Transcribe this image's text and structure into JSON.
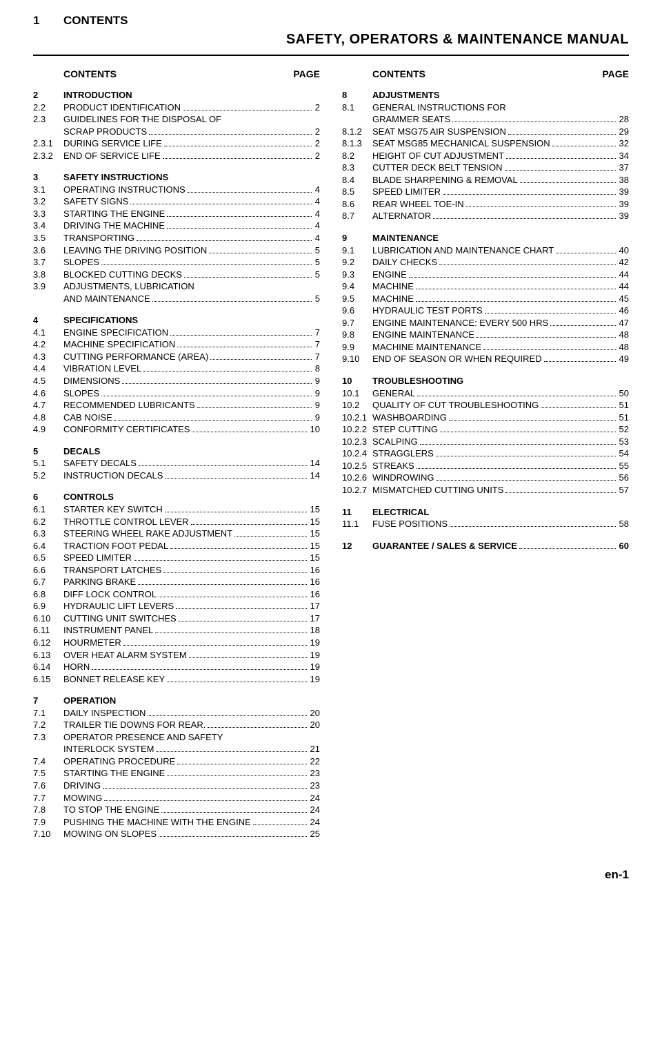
{
  "header": {
    "num": "1",
    "title": "CONTENTS"
  },
  "subtitle": "SAFETY, OPERATORS & MAINTENANCE  MANUAL",
  "colHeader": {
    "contents": "CONTENTS",
    "page": "PAGE"
  },
  "footer": "en-1",
  "left": [
    {
      "num": "2",
      "title": "INTRODUCTION",
      "entries": [
        {
          "num": "2.2",
          "title": "PRODUCT IDENTIFICATION",
          "page": "2"
        },
        {
          "num": "2.3",
          "title": "GUIDELINES FOR THE DISPOSAL OF",
          "cont": "SCRAP PRODUCTS",
          "page": "2"
        },
        {
          "num": "2.3.1",
          "title": "DURING SERVICE LIFE",
          "page": "2"
        },
        {
          "num": "2.3.2",
          "title": "END OF SERVICE LIFE",
          "page": "2"
        }
      ]
    },
    {
      "num": "3",
      "title": "SAFETY INSTRUCTIONS",
      "entries": [
        {
          "num": "3.1",
          "title": "OPERATING INSTRUCTIONS",
          "page": "4"
        },
        {
          "num": "3.2",
          "title": "SAFETY SIGNS",
          "page": "4"
        },
        {
          "num": "3.3",
          "title": "STARTING THE ENGINE",
          "page": "4"
        },
        {
          "num": "3.4",
          "title": "DRIVING THE MACHINE",
          "page": "4"
        },
        {
          "num": "3.5",
          "title": "TRANSPORTING",
          "page": "4"
        },
        {
          "num": "3.6",
          "title": "LEAVING THE DRIVING POSITION",
          "page": "5"
        },
        {
          "num": "3.7",
          "title": "SLOPES",
          "page": "5"
        },
        {
          "num": "3.8",
          "title": "BLOCKED CUTTING DECKS",
          "page": "5"
        },
        {
          "num": "3.9",
          "title": "ADJUSTMENTS, LUBRICATION",
          "cont": "AND MAINTENANCE",
          "page": "5"
        }
      ]
    },
    {
      "num": "4",
      "title": "SPECIFICATIONS",
      "entries": [
        {
          "num": "4.1",
          "title": "ENGINE SPECIFICATION",
          "page": "7"
        },
        {
          "num": "4.2",
          "title": "MACHINE SPECIFICATION",
          "page": "7"
        },
        {
          "num": "4.3",
          "title": "CUTTING PERFORMANCE (AREA)",
          "page": "7"
        },
        {
          "num": "4.4",
          "title": "VIBRATION LEVEL",
          "page": "8"
        },
        {
          "num": "4.5",
          "title": "DIMENSIONS",
          "page": "9"
        },
        {
          "num": "4.6",
          "title": "SLOPES",
          "page": "9"
        },
        {
          "num": "4.7",
          "title": "RECOMMENDED LUBRICANTS",
          "page": "9"
        },
        {
          "num": "4.8",
          "title": "CAB NOISE",
          "page": "9"
        },
        {
          "num": "4.9",
          "title": "CONFORMITY CERTIFICATES",
          "page": "10"
        }
      ]
    },
    {
      "num": "5",
      "title": "DECALS",
      "entries": [
        {
          "num": "5.1",
          "title": "SAFETY DECALS",
          "page": "14"
        },
        {
          "num": "5.2",
          "title": "INSTRUCTION DECALS",
          "page": "14"
        }
      ]
    },
    {
      "num": "6",
      "title": "CONTROLS",
      "entries": [
        {
          "num": "6.1",
          "title": "STARTER KEY SWITCH",
          "page": "15"
        },
        {
          "num": "6.2",
          "title": "THROTTLE CONTROL LEVER",
          "page": "15"
        },
        {
          "num": "6.3",
          "title": "STEERING WHEEL RAKE ADJUSTMENT",
          "page": "15"
        },
        {
          "num": "6.4",
          "title": "TRACTION FOOT PEDAL",
          "page": "15"
        },
        {
          "num": "6.5",
          "title": "SPEED LIMITER",
          "page": "15"
        },
        {
          "num": "6.6",
          "title": " TRANSPORT LATCHES",
          "page": "16"
        },
        {
          "num": "6.7",
          "title": "PARKING BRAKE",
          "page": "16"
        },
        {
          "num": "6.8",
          "title": "DIFF LOCK CONTROL",
          "page": "16"
        },
        {
          "num": "6.9",
          "title": "HYDRAULIC LIFT LEVERS",
          "page": "17"
        },
        {
          "num": "6.10",
          "title": "CUTTING UNIT SWITCHES",
          "page": "17"
        },
        {
          "num": "6.11",
          "title": "INSTRUMENT PANEL",
          "page": "18"
        },
        {
          "num": "6.12",
          "title": "HOURMETER",
          "page": "19"
        },
        {
          "num": "6.13",
          "title": "OVER HEAT ALARM SYSTEM",
          "page": "19"
        },
        {
          "num": "6.14",
          "title": "HORN",
          "page": "19"
        },
        {
          "num": "6.15",
          "title": "BONNET RELEASE KEY",
          "page": "19"
        }
      ]
    },
    {
      "num": "7",
      "title": "OPERATION",
      "entries": [
        {
          "num": "7.1",
          "title": "DAILY INSPECTION",
          "page": "20"
        },
        {
          "num": "7.2",
          "title": "TRAILER TIE DOWNS FOR REAR.",
          "page": "20"
        },
        {
          "num": "7.3",
          "title": "OPERATOR PRESENCE AND SAFETY",
          "cont": "INTERLOCK SYSTEM",
          "page": "21"
        },
        {
          "num": "7.4",
          "title": "OPERATING PROCEDURE",
          "page": "22"
        },
        {
          "num": "7.5",
          "title": "STARTING THE ENGINE",
          "page": "23"
        },
        {
          "num": "7.6",
          "title": "DRIVING",
          "page": "23"
        },
        {
          "num": "7.7",
          "title": "MOWING",
          "page": "24"
        },
        {
          "num": "7.8",
          "title": "TO STOP THE ENGINE",
          "page": "24"
        },
        {
          "num": "7.9",
          "title": "PUSHING THE MACHINE WITH THE ENGINE",
          "page": "24"
        },
        {
          "num": "7.10",
          "title": "MOWING ON SLOPES",
          "page": "25"
        }
      ]
    }
  ],
  "right": [
    {
      "num": "8",
      "title": "ADJUSTMENTS",
      "entries": [
        {
          "num": "8.1",
          "title": "GENERAL INSTRUCTIONS FOR",
          "cont": "GRAMMER SEATS",
          "page": "28"
        },
        {
          "num": "8.1.2",
          "title": "SEAT MSG75 AIR SUSPENSION",
          "page": "29"
        },
        {
          "num": "8.1.3",
          "title": "SEAT MSG85 MECHANICAL SUSPENSION",
          "page": "32"
        },
        {
          "num": "8.2",
          "title": "HEIGHT OF CUT ADJUSTMENT",
          "page": "34"
        },
        {
          "num": "8.3",
          "title": "CUTTER DECK BELT TENSION",
          "page": "37"
        },
        {
          "num": "8.4",
          "title": " BLADE SHARPENING & REMOVAL",
          "page": "38"
        },
        {
          "num": "8.5",
          "title": "SPEED LIMITER",
          "page": "39"
        },
        {
          "num": "8.6",
          "title": "REAR WHEEL TOE-IN",
          "page": "39"
        },
        {
          "num": "8.7",
          "title": "ALTERNATOR",
          "page": "39"
        }
      ]
    },
    {
      "num": "9",
      "title": "MAINTENANCE",
      "entries": [
        {
          "num": "9.1",
          "title": "LUBRICATION AND MAINTENANCE CHART",
          "page": "40"
        },
        {
          "num": "9.2",
          "title": "DAILY CHECKS",
          "page": "42"
        },
        {
          "num": "9.3",
          "title": "ENGINE",
          "page": "44"
        },
        {
          "num": "9.4",
          "title": "MACHINE",
          "page": "44"
        },
        {
          "num": "9.5",
          "title": "MACHINE",
          "page": "45"
        },
        {
          "num": "9.6",
          "title": "HYDRAULIC TEST PORTS",
          "page": "46"
        },
        {
          "num": "9.7",
          "title": "ENGINE MAINTENANCE:  EVERY 500 HRS",
          "page": "47"
        },
        {
          "num": "9.8",
          "title": "ENGINE MAINTENANCE",
          "page": "48"
        },
        {
          "num": "9.9",
          "title": "MACHINE MAINTENANCE",
          "page": "48"
        },
        {
          "num": "9.10",
          "title": "END OF SEASON OR WHEN REQUIRED",
          "page": "49"
        }
      ]
    },
    {
      "num": "10",
      "title": "TROUBLESHOOTING",
      "entries": [
        {
          "num": "10.1",
          "title": "GENERAL",
          "page": "50"
        },
        {
          "num": "10.2",
          "title": "QUALITY OF CUT TROUBLESHOOTING",
          "page": "51"
        },
        {
          "num": "10.2.1",
          "title": "WASHBOARDING",
          "page": "51"
        },
        {
          "num": "10.2.2",
          "title": "STEP CUTTING",
          "page": "52"
        },
        {
          "num": "10.2.3",
          "title": "SCALPING",
          "page": "53"
        },
        {
          "num": "10.2.4",
          "title": "STRAGGLERS",
          "page": "54"
        },
        {
          "num": "10.2.5",
          "title": "STREAKS",
          "page": "55"
        },
        {
          "num": "10.2.6",
          "title": "WINDROWING",
          "page": "56"
        },
        {
          "num": "10.2.7",
          "title": "MISMATCHED CUTTING UNITS",
          "page": "57"
        }
      ]
    },
    {
      "num": "11",
      "title": "ELECTRICAL",
      "entries": [
        {
          "num": "11.1",
          "title": "FUSE POSITIONS",
          "page": "58"
        }
      ]
    },
    {
      "num": "12",
      "title": "GUARANTEE / SALES & SERVICE",
      "page": "60",
      "asEntry": true,
      "entries": []
    }
  ]
}
